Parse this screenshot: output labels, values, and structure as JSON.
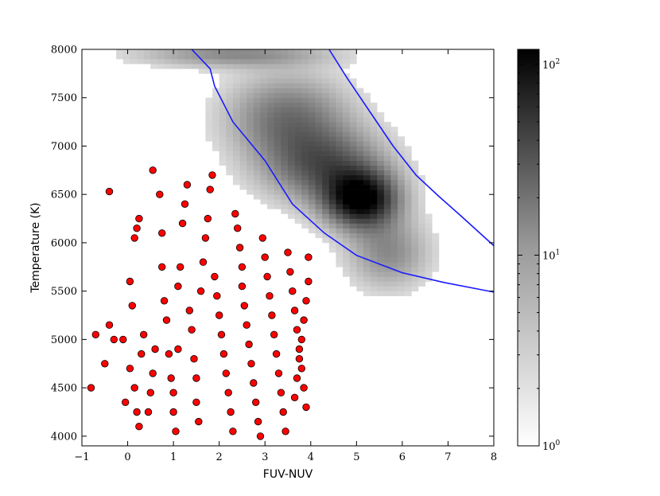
{
  "chart_data": {
    "type": "scatter",
    "xlabel": "FUV-NUV",
    "ylabel": "Temperature (K)",
    "xlim": [
      -1,
      8
    ],
    "ylim": [
      3900,
      8000
    ],
    "x_ticks": [
      "−1",
      "0",
      "1",
      "2",
      "3",
      "4",
      "5",
      "6",
      "7",
      "8"
    ],
    "y_ticks": [
      "4000",
      "4500",
      "5000",
      "5500",
      "6000",
      "6500",
      "7000",
      "7500",
      "8000"
    ],
    "colorbar": {
      "scale": "log",
      "range": [
        1,
        120
      ],
      "tick_labels": [
        {
          "base": "10",
          "exp": "0",
          "value": 1
        },
        {
          "base": "10",
          "exp": "1",
          "value": 10
        },
        {
          "base": "10",
          "exp": "2",
          "value": 100
        }
      ],
      "colormap": "Greys"
    },
    "density_blobs": [
      {
        "x": 5.1,
        "y": 6450,
        "sx": 0.55,
        "sy": 200,
        "amp": 1.0,
        "rot": -0.6
      },
      {
        "x": 4.3,
        "y": 6800,
        "sx": 0.9,
        "sy": 260,
        "amp": 0.55,
        "rot": -0.55
      },
      {
        "x": 3.5,
        "y": 7300,
        "sx": 0.9,
        "sy": 300,
        "amp": 0.45,
        "rot": -0.55
      },
      {
        "x": 2.3,
        "y": 7950,
        "sx": 1.4,
        "sy": 90,
        "amp": 0.35,
        "rot": 0
      },
      {
        "x": 5.7,
        "y": 5900,
        "sx": 0.6,
        "sy": 250,
        "amp": 0.35,
        "rot": -0.5
      }
    ],
    "curves": [
      {
        "name": "",
        "color": "#1a1aff",
        "x": [
          1.4,
          1.8,
          1.9,
          2.3,
          3.0,
          3.6,
          4.3,
          5.0,
          6.0,
          6.9,
          8.0
        ],
        "y": [
          8000,
          7800,
          7620,
          7250,
          6850,
          6400,
          6100,
          5870,
          5690,
          5590,
          5490
        ]
      },
      {
        "name": "",
        "color": "#1a1aff",
        "x": [
          4.4,
          4.8,
          5.3,
          5.8,
          6.3,
          6.8,
          7.3,
          8.0
        ],
        "y": [
          8000,
          7700,
          7350,
          7000,
          6700,
          6480,
          6270,
          5970
        ]
      }
    ],
    "scatter_series": {
      "name": "",
      "color": "#ff0000",
      "edgecolor": "#000000",
      "points": [
        [
          -0.7,
          5050
        ],
        [
          -0.5,
          4750
        ],
        [
          -0.8,
          4500
        ],
        [
          -0.4,
          6530
        ],
        [
          -0.4,
          5150
        ],
        [
          -0.3,
          5000
        ],
        [
          -0.1,
          5000
        ],
        [
          -0.05,
          4350
        ],
        [
          0.05,
          5600
        ],
        [
          0.1,
          5350
        ],
        [
          0.05,
          4700
        ],
        [
          0.15,
          4500
        ],
        [
          0.2,
          4250
        ],
        [
          0.25,
          4100
        ],
        [
          0.3,
          4850
        ],
        [
          0.35,
          5050
        ],
        [
          0.25,
          6250
        ],
        [
          0.2,
          6150
        ],
        [
          0.15,
          6050
        ],
        [
          0.45,
          4250
        ],
        [
          0.5,
          4450
        ],
        [
          0.55,
          4650
        ],
        [
          0.6,
          4900
        ],
        [
          0.55,
          6750
        ],
        [
          0.7,
          6500
        ],
        [
          0.75,
          6100
        ],
        [
          0.75,
          5750
        ],
        [
          0.8,
          5400
        ],
        [
          0.85,
          5200
        ],
        [
          0.9,
          4850
        ],
        [
          0.95,
          4600
        ],
        [
          1.0,
          4450
        ],
        [
          1.0,
          4250
        ],
        [
          1.05,
          4050
        ],
        [
          1.1,
          4900
        ],
        [
          1.1,
          5550
        ],
        [
          1.15,
          5750
        ],
        [
          1.2,
          6200
        ],
        [
          1.25,
          6400
        ],
        [
          1.3,
          6600
        ],
        [
          1.35,
          5300
        ],
        [
          1.4,
          5100
        ],
        [
          1.45,
          4800
        ],
        [
          1.5,
          4600
        ],
        [
          1.5,
          4350
        ],
        [
          1.55,
          4150
        ],
        [
          1.6,
          5500
        ],
        [
          1.65,
          5800
        ],
        [
          1.7,
          6050
        ],
        [
          1.75,
          6250
        ],
        [
          1.8,
          6550
        ],
        [
          1.85,
          6700
        ],
        [
          1.9,
          5650
        ],
        [
          1.95,
          5450
        ],
        [
          2.0,
          5250
        ],
        [
          2.05,
          5050
        ],
        [
          2.1,
          4850
        ],
        [
          2.15,
          4650
        ],
        [
          2.2,
          4450
        ],
        [
          2.25,
          4250
        ],
        [
          2.3,
          4050
        ],
        [
          2.35,
          6300
        ],
        [
          2.4,
          6150
        ],
        [
          2.45,
          5950
        ],
        [
          2.5,
          5750
        ],
        [
          2.5,
          5550
        ],
        [
          2.55,
          5350
        ],
        [
          2.6,
          5150
        ],
        [
          2.65,
          4950
        ],
        [
          2.7,
          4750
        ],
        [
          2.75,
          4550
        ],
        [
          2.8,
          4350
        ],
        [
          2.85,
          4150
        ],
        [
          2.9,
          4000
        ],
        [
          2.95,
          6050
        ],
        [
          3.0,
          5850
        ],
        [
          3.05,
          5650
        ],
        [
          3.1,
          5450
        ],
        [
          3.15,
          5250
        ],
        [
          3.2,
          5050
        ],
        [
          3.25,
          4850
        ],
        [
          3.3,
          4650
        ],
        [
          3.35,
          4450
        ],
        [
          3.4,
          4250
        ],
        [
          3.45,
          4050
        ],
        [
          3.5,
          5900
        ],
        [
          3.55,
          5700
        ],
        [
          3.6,
          5500
        ],
        [
          3.65,
          5300
        ],
        [
          3.7,
          5100
        ],
        [
          3.75,
          4900
        ],
        [
          3.8,
          4700
        ],
        [
          3.85,
          4500
        ],
        [
          3.9,
          4300
        ],
        [
          3.95,
          5850
        ],
        [
          3.95,
          5600
        ],
        [
          3.9,
          5400
        ],
        [
          3.85,
          5200
        ],
        [
          3.8,
          5000
        ],
        [
          3.75,
          4800
        ],
        [
          3.7,
          4600
        ],
        [
          3.65,
          4400
        ]
      ]
    }
  }
}
